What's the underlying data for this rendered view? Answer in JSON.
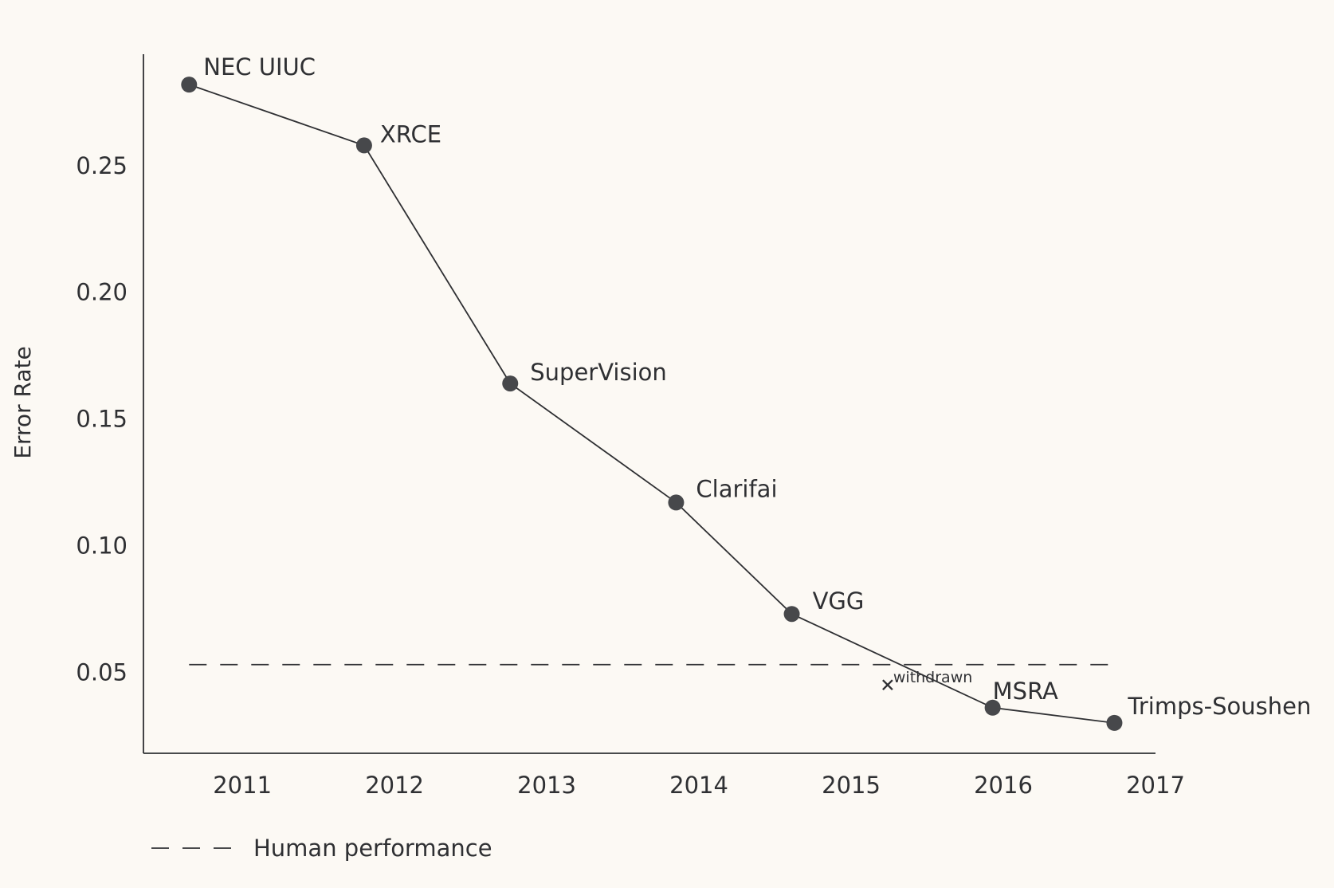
{
  "chart_data": {
    "type": "line",
    "xlabel": "",
    "ylabel": "Error Rate",
    "xlim": [
      2010.35,
      2017.0
    ],
    "ylim": [
      0.018,
      0.294
    ],
    "x_ticks": [
      2011,
      2012,
      2013,
      2014,
      2015,
      2016,
      2017
    ],
    "x_tick_labels": [
      "2011",
      "2012",
      "2013",
      "2014",
      "2015",
      "2016",
      "2017"
    ],
    "y_ticks": [
      0.05,
      0.1,
      0.15,
      0.2,
      0.25
    ],
    "y_tick_labels": [
      "0.05",
      "0.10",
      "0.15",
      "0.20",
      "0.25"
    ],
    "grid": false,
    "series": [
      {
        "points": [
          {
            "x": 2010.65,
            "y": 0.282,
            "label": "NEC UIUC"
          },
          {
            "x": 2011.8,
            "y": 0.258,
            "label": "XRCE"
          },
          {
            "x": 2012.76,
            "y": 0.164,
            "label": "SuperVision"
          },
          {
            "x": 2013.85,
            "y": 0.117,
            "label": "Clarifai"
          },
          {
            "x": 2014.61,
            "y": 0.073,
            "label": "VGG"
          },
          {
            "x": 2015.93,
            "y": 0.036,
            "label": "MSRA"
          },
          {
            "x": 2016.73,
            "y": 0.03,
            "label": "Trimps-Soushen"
          }
        ]
      }
    ],
    "annotations": [
      {
        "x": 2015.24,
        "y": 0.045,
        "marker": "x",
        "label": "withdrawn"
      }
    ],
    "reference_lines": [
      {
        "y": 0.053,
        "style": "dashed",
        "label": "Human performance"
      }
    ],
    "legend": {
      "placement": "bottom-left",
      "entries": [
        {
          "style": "dashed",
          "label": "Human performance"
        }
      ]
    }
  },
  "colors": {
    "background": "#fcf9f4",
    "ink": "#2f3033",
    "marker": "#47484b"
  }
}
